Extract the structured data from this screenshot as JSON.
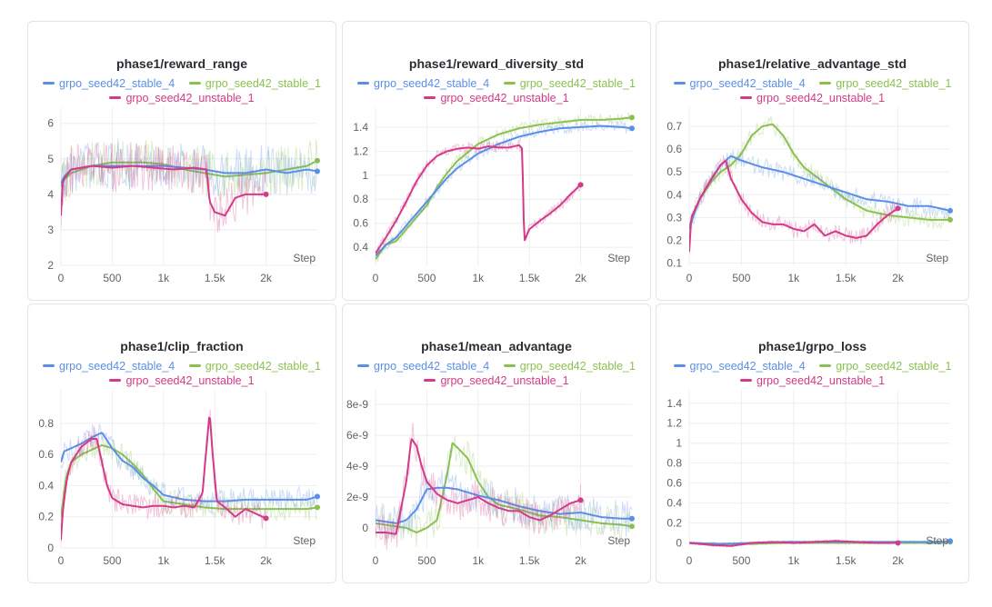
{
  "colors": {
    "stable_4": "#5b8fe6",
    "stable_1": "#8cc152",
    "unstable_1": "#d33a87",
    "grid": "#eceef1",
    "axis_text": "#5f6368"
  },
  "legend": {
    "stable_4": "grpo_seed42_stable_4",
    "stable_1": "grpo_seed42_stable_1",
    "unstable_1": "grpo_seed42_unstable_1"
  },
  "step_label": "Step",
  "chart_data": [
    {
      "type": "line",
      "title": "phase1/reward_range",
      "xlabel": "Step",
      "xlim": [
        0,
        2500
      ],
      "ylim": [
        2,
        6.3
      ],
      "xticks": [
        0,
        500,
        1000,
        1500,
        2000
      ],
      "xtick_labels": [
        "0",
        "500",
        "1k",
        "1.5k",
        "2k"
      ],
      "yticks": [
        2,
        3,
        4,
        5,
        6
      ],
      "ytick_labels": [
        "2",
        "3",
        "4",
        "5",
        "6"
      ],
      "noise": 0.7,
      "series": [
        {
          "key": "stable_4",
          "name": "grpo_seed42_stable_4",
          "x": [
            0,
            30,
            100,
            300,
            500,
            800,
            1000,
            1200,
            1400,
            1600,
            1800,
            2000,
            2200,
            2400,
            2500
          ],
          "y": [
            4.3,
            4.5,
            4.7,
            4.8,
            4.8,
            4.8,
            4.8,
            4.75,
            4.7,
            4.6,
            4.6,
            4.7,
            4.6,
            4.7,
            4.65
          ]
        },
        {
          "key": "stable_1",
          "name": "grpo_seed42_stable_1",
          "x": [
            0,
            30,
            100,
            300,
            500,
            800,
            1000,
            1200,
            1400,
            1600,
            1800,
            2000,
            2200,
            2400,
            2500
          ],
          "y": [
            4.2,
            4.4,
            4.6,
            4.8,
            4.9,
            4.9,
            4.85,
            4.7,
            4.6,
            4.5,
            4.55,
            4.6,
            4.7,
            4.8,
            4.95
          ]
        },
        {
          "key": "unstable_1",
          "name": "grpo_seed42_unstable_1",
          "x": [
            0,
            20,
            100,
            300,
            500,
            700,
            900,
            1100,
            1300,
            1420,
            1450,
            1500,
            1600,
            1700,
            1800,
            1900,
            2000
          ],
          "y": [
            3.4,
            4.4,
            4.7,
            4.8,
            4.75,
            4.8,
            4.75,
            4.7,
            4.75,
            4.7,
            3.8,
            3.5,
            3.4,
            3.9,
            4.0,
            4.0,
            4.0
          ]
        }
      ]
    },
    {
      "type": "line",
      "title": "phase1/reward_diversity_std",
      "xlabel": "Step",
      "xlim": [
        0,
        2500
      ],
      "ylim": [
        0.25,
        1.52
      ],
      "xticks": [
        0,
        500,
        1000,
        1500,
        2000
      ],
      "xtick_labels": [
        "0",
        "500",
        "1k",
        "1.5k",
        "2k"
      ],
      "yticks": [
        0.4,
        0.6,
        0.8,
        1,
        1.2,
        1.4
      ],
      "ytick_labels": [
        "0.4",
        "0.6",
        "0.8",
        "1",
        "1.2",
        "1.4"
      ],
      "noise": 0.05,
      "series": [
        {
          "key": "stable_4",
          "name": "grpo_seed42_stable_4",
          "x": [
            0,
            100,
            200,
            300,
            400,
            500,
            600,
            700,
            800,
            1000,
            1200,
            1400,
            1600,
            1800,
            2000,
            2200,
            2400,
            2500
          ],
          "y": [
            0.33,
            0.42,
            0.48,
            0.58,
            0.68,
            0.78,
            0.88,
            0.98,
            1.06,
            1.18,
            1.26,
            1.32,
            1.36,
            1.39,
            1.4,
            1.41,
            1.4,
            1.39
          ]
        },
        {
          "key": "stable_1",
          "name": "grpo_seed42_stable_1",
          "x": [
            0,
            100,
            200,
            300,
            400,
            500,
            600,
            700,
            800,
            1000,
            1200,
            1400,
            1600,
            1800,
            2000,
            2200,
            2400,
            2500
          ],
          "y": [
            0.3,
            0.42,
            0.45,
            0.55,
            0.65,
            0.75,
            0.9,
            1.02,
            1.12,
            1.26,
            1.34,
            1.39,
            1.42,
            1.44,
            1.46,
            1.46,
            1.47,
            1.48
          ]
        },
        {
          "key": "unstable_1",
          "name": "grpo_seed42_unstable_1",
          "x": [
            0,
            100,
            200,
            300,
            400,
            500,
            600,
            700,
            800,
            900,
            1000,
            1100,
            1200,
            1300,
            1400,
            1430,
            1450,
            1500,
            1600,
            1700,
            1800,
            1900,
            2000
          ],
          "y": [
            0.35,
            0.48,
            0.62,
            0.78,
            0.95,
            1.08,
            1.16,
            1.2,
            1.22,
            1.23,
            1.22,
            1.24,
            1.23,
            1.23,
            1.25,
            1.22,
            0.45,
            0.55,
            0.62,
            0.68,
            0.75,
            0.84,
            0.92
          ]
        }
      ]
    },
    {
      "type": "line",
      "title": "phase1/relative_advantage_std",
      "xlabel": "Step",
      "xlim": [
        0,
        2500
      ],
      "ylim": [
        0.09,
        0.76
      ],
      "xticks": [
        0,
        500,
        1000,
        1500,
        2000
      ],
      "xtick_labels": [
        "0",
        "500",
        "1k",
        "1.5k",
        "2k"
      ],
      "yticks": [
        0.1,
        0.2,
        0.3,
        0.4,
        0.5,
        0.6,
        0.7
      ],
      "ytick_labels": [
        "0.1",
        "0.2",
        "0.3",
        "0.4",
        "0.5",
        "0.6",
        "0.7"
      ],
      "noise": 0.04,
      "series": [
        {
          "key": "stable_4",
          "name": "grpo_seed42_stable_4",
          "x": [
            0,
            50,
            100,
            200,
            300,
            400,
            500,
            700,
            900,
            1100,
            1300,
            1500,
            1700,
            1900,
            2100,
            2300,
            2500
          ],
          "y": [
            0.25,
            0.32,
            0.38,
            0.46,
            0.53,
            0.57,
            0.55,
            0.52,
            0.5,
            0.47,
            0.44,
            0.41,
            0.38,
            0.37,
            0.35,
            0.35,
            0.33
          ]
        },
        {
          "key": "stable_1",
          "name": "grpo_seed42_stable_1",
          "x": [
            0,
            50,
            100,
            200,
            300,
            400,
            500,
            600,
            700,
            800,
            900,
            1000,
            1100,
            1300,
            1500,
            1700,
            1900,
            2100,
            2300,
            2500
          ],
          "y": [
            0.26,
            0.33,
            0.38,
            0.45,
            0.5,
            0.53,
            0.58,
            0.66,
            0.7,
            0.71,
            0.66,
            0.58,
            0.52,
            0.45,
            0.38,
            0.33,
            0.31,
            0.3,
            0.29,
            0.29
          ]
        },
        {
          "key": "unstable_1",
          "name": "grpo_seed42_unstable_1",
          "x": [
            0,
            20,
            100,
            200,
            300,
            350,
            400,
            500,
            600,
            700,
            800,
            900,
            1000,
            1100,
            1200,
            1300,
            1400,
            1500,
            1600,
            1700,
            1800,
            1900,
            2000
          ],
          "y": [
            0.15,
            0.3,
            0.38,
            0.46,
            0.53,
            0.55,
            0.47,
            0.38,
            0.32,
            0.28,
            0.27,
            0.27,
            0.25,
            0.24,
            0.27,
            0.22,
            0.24,
            0.22,
            0.21,
            0.22,
            0.27,
            0.31,
            0.34
          ]
        }
      ]
    },
    {
      "type": "line",
      "title": "phase1/clip_fraction",
      "xlabel": "Step",
      "xlim": [
        0,
        2500
      ],
      "ylim": [
        0,
        0.98
      ],
      "xticks": [
        0,
        500,
        1000,
        1500,
        2000
      ],
      "xtick_labels": [
        "0",
        "500",
        "1k",
        "1.5k",
        "2k"
      ],
      "yticks": [
        0,
        0.2,
        0.4,
        0.6,
        0.8
      ],
      "ytick_labels": [
        "0",
        "0.2",
        "0.4",
        "0.6",
        "0.8"
      ],
      "noise": 0.08,
      "series": [
        {
          "key": "stable_4",
          "name": "grpo_seed42_stable_4",
          "x": [
            0,
            30,
            100,
            200,
            300,
            400,
            500,
            600,
            700,
            800,
            900,
            1000,
            1200,
            1400,
            1600,
            1800,
            2000,
            2200,
            2400,
            2500
          ],
          "y": [
            0.55,
            0.62,
            0.64,
            0.67,
            0.71,
            0.74,
            0.64,
            0.56,
            0.52,
            0.45,
            0.4,
            0.34,
            0.31,
            0.3,
            0.3,
            0.31,
            0.31,
            0.31,
            0.31,
            0.33
          ]
        },
        {
          "key": "stable_1",
          "name": "grpo_seed42_stable_1",
          "x": [
            0,
            50,
            100,
            200,
            300,
            400,
            500,
            600,
            700,
            800,
            900,
            1000,
            1200,
            1400,
            1600,
            1800,
            2000,
            2200,
            2400,
            2500
          ],
          "y": [
            0.2,
            0.45,
            0.55,
            0.6,
            0.63,
            0.66,
            0.64,
            0.6,
            0.54,
            0.47,
            0.38,
            0.3,
            0.28,
            0.26,
            0.25,
            0.25,
            0.25,
            0.25,
            0.25,
            0.26
          ]
        },
        {
          "key": "unstable_1",
          "name": "grpo_seed42_unstable_1",
          "x": [
            0,
            20,
            60,
            100,
            200,
            300,
            350,
            400,
            450,
            500,
            600,
            700,
            800,
            900,
            1000,
            1100,
            1200,
            1300,
            1380,
            1420,
            1450,
            1480,
            1520,
            1600,
            1700,
            1800,
            1900,
            2000
          ],
          "y": [
            0.05,
            0.25,
            0.45,
            0.55,
            0.65,
            0.7,
            0.7,
            0.55,
            0.4,
            0.32,
            0.28,
            0.27,
            0.26,
            0.27,
            0.27,
            0.26,
            0.27,
            0.26,
            0.35,
            0.65,
            0.87,
            0.6,
            0.3,
            0.26,
            0.2,
            0.25,
            0.22,
            0.19
          ]
        }
      ]
    },
    {
      "type": "line",
      "title": "phase1/mean_advantage",
      "xlabel": "Step",
      "xlim": [
        0,
        2500
      ],
      "ylim": [
        -1.3e-09,
        8.6e-09
      ],
      "xticks": [
        0,
        500,
        1000,
        1500,
        2000
      ],
      "xtick_labels": [
        "0",
        "500",
        "1k",
        "1.5k",
        "2k"
      ],
      "yticks": [
        0,
        2e-09,
        4e-09,
        6e-09,
        8e-09
      ],
      "ytick_labels": [
        "0",
        "2e-9",
        "4e-9",
        "6e-9",
        "8e-9"
      ],
      "noise": 1.2e-09,
      "series": [
        {
          "key": "stable_4",
          "name": "grpo_seed42_stable_4",
          "x": [
            0,
            100,
            200,
            300,
            400,
            500,
            600,
            700,
            800,
            900,
            1000,
            1200,
            1400,
            1600,
            1800,
            2000,
            2200,
            2400,
            2500
          ],
          "y": [
            5e-10,
            4e-10,
            3e-10,
            5e-10,
            1.2e-09,
            2.5e-09,
            2.6e-09,
            2.6e-09,
            2.5e-09,
            2.3e-09,
            2.1e-09,
            1.8e-09,
            1.4e-09,
            1.1e-09,
            9e-10,
            1e-09,
            7e-10,
            6e-10,
            6e-10
          ]
        },
        {
          "key": "stable_1",
          "name": "grpo_seed42_stable_1",
          "x": [
            0,
            100,
            200,
            300,
            400,
            500,
            600,
            700,
            750,
            800,
            900,
            1000,
            1100,
            1200,
            1400,
            1600,
            1800,
            2000,
            2200,
            2400,
            2500
          ],
          "y": [
            3e-10,
            2e-10,
            1e-10,
            0,
            -3e-10,
            0,
            5e-10,
            3.5e-09,
            5.5e-09,
            5.2e-09,
            4.5e-09,
            3e-09,
            2e-09,
            1.5e-09,
            1.2e-09,
            8e-10,
            7e-10,
            5e-10,
            3e-10,
            2e-10,
            1e-10
          ]
        },
        {
          "key": "unstable_1",
          "name": "grpo_seed42_unstable_1",
          "x": [
            0,
            100,
            200,
            300,
            350,
            400,
            450,
            500,
            600,
            700,
            800,
            900,
            1000,
            1100,
            1200,
            1300,
            1400,
            1500,
            1600,
            1700,
            1800,
            1900,
            2000
          ],
          "y": [
            -3e-10,
            -3e-10,
            -4e-10,
            3e-09,
            5.8e-09,
            5.3e-09,
            4e-09,
            3e-09,
            2.2e-09,
            1.8e-09,
            1.6e-09,
            1.8e-09,
            2e-09,
            1.6e-09,
            1.3e-09,
            1.1e-09,
            1.1e-09,
            7e-10,
            5e-10,
            8e-10,
            1.2e-09,
            1.6e-09,
            1.8e-09
          ]
        }
      ]
    },
    {
      "type": "line",
      "title": "phase1/grpo_loss",
      "xlabel": "Step",
      "xlim": [
        0,
        2500
      ],
      "ylim": [
        -0.05,
        1.48
      ],
      "xticks": [
        0,
        500,
        1000,
        1500,
        2000
      ],
      "xtick_labels": [
        "0",
        "500",
        "1k",
        "1.5k",
        "2k"
      ],
      "yticks": [
        0,
        0.2,
        0.4,
        0.6,
        0.8,
        1,
        1.2,
        1.4
      ],
      "ytick_labels": [
        "0",
        "0.2",
        "0.4",
        "0.6",
        "0.8",
        "1",
        "1.2",
        "1.4"
      ],
      "noise": 0.015,
      "series": [
        {
          "key": "stable_4",
          "name": "grpo_seed42_stable_4",
          "x": [
            0,
            300,
            600,
            900,
            1200,
            1500,
            1800,
            2100,
            2400,
            2500
          ],
          "y": [
            0,
            -0.01,
            0,
            0.01,
            0.01,
            0.01,
            0.01,
            0.01,
            0.01,
            0.02
          ]
        },
        {
          "key": "stable_1",
          "name": "grpo_seed42_stable_1",
          "x": [
            0,
            300,
            600,
            900,
            1200,
            1500,
            1800,
            2100,
            2400,
            2500
          ],
          "y": [
            0,
            -0.01,
            -0.01,
            0,
            0,
            0,
            0,
            0,
            0,
            0.01
          ]
        },
        {
          "key": "unstable_1",
          "name": "grpo_seed42_unstable_1",
          "x": [
            0,
            200,
            400,
            600,
            800,
            1000,
            1200,
            1400,
            1600,
            1800,
            2000
          ],
          "y": [
            0,
            -0.02,
            -0.03,
            0,
            0.01,
            0,
            0.01,
            0.02,
            0.01,
            0,
            0
          ]
        }
      ]
    }
  ]
}
